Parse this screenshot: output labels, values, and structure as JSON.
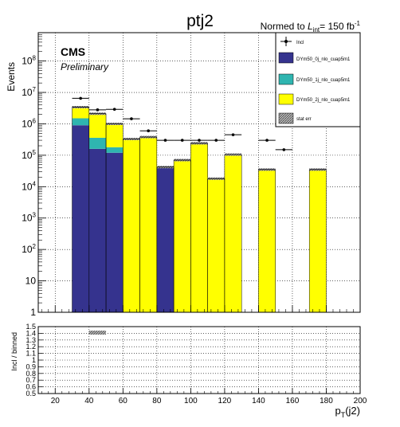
{
  "chart_data": {
    "type": "bar",
    "title": "ptj2",
    "normalization_label": "Normed to",
    "lumi_symbol": "L",
    "lumi_subscript": "int",
    "lumi_value": "= 150 fb",
    "lumi_superscript": "-1",
    "experiment_label": "CMS",
    "status_label": "Preliminary",
    "ylabel": "Events",
    "xlabel_main": "p",
    "xlabel_sub": "T",
    "xlabel_arg": "(j2)",
    "ratio_ylabel": "Incl / binned",
    "xlim": [
      10,
      200
    ],
    "ylim": [
      1,
      800000000
    ],
    "log_y": true,
    "grid": true,
    "legend_position": "top-right",
    "bin_edges": [
      0,
      30,
      40,
      50,
      60,
      70,
      80,
      90,
      100,
      110,
      120,
      130,
      140,
      150,
      160,
      170,
      180,
      190,
      200
    ],
    "x_ticks": [
      20,
      40,
      60,
      80,
      100,
      120,
      140,
      160,
      180,
      200
    ],
    "y_ticks": [
      {
        "value": 1,
        "label": "1"
      },
      {
        "value": 10,
        "label": "10"
      },
      {
        "value": 100,
        "base": "10",
        "exp": "2"
      },
      {
        "value": 1000,
        "base": "10",
        "exp": "3"
      },
      {
        "value": 10000,
        "base": "10",
        "exp": "4"
      },
      {
        "value": 100000,
        "base": "10",
        "exp": "5"
      },
      {
        "value": 1000000,
        "base": "10",
        "exp": "6"
      },
      {
        "value": 10000000,
        "base": "10",
        "exp": "7"
      },
      {
        "value": 100000000,
        "base": "10",
        "exp": "8"
      }
    ],
    "stack": [
      {
        "name": "DYm50_0j_nlo_cuap5m1",
        "color": "#35338e",
        "values": [
          0,
          900000,
          160000,
          120000,
          0,
          0,
          42000,
          0,
          0,
          0,
          0,
          0,
          0,
          0,
          0,
          0,
          0,
          0
        ]
      },
      {
        "name": "DYm50_1j_nlo_cuap5m1",
        "color": "#2fb5b0",
        "values": [
          0,
          600000,
          200000,
          60000,
          0,
          0,
          0,
          0,
          0,
          0,
          0,
          0,
          0,
          0,
          0,
          0,
          0,
          0
        ]
      },
      {
        "name": "DYm50_2j_nlo_cuap5m1",
        "color": "#ffff00",
        "values": [
          0,
          1900000,
          1740000,
          820000,
          330000,
          380000,
          0,
          70000,
          240000,
          18000,
          105000,
          0,
          35000,
          0,
          0,
          35000,
          0,
          0
        ]
      }
    ],
    "incl": {
      "name": "Incl",
      "x": [
        35,
        45,
        55,
        65,
        75,
        85,
        95,
        105,
        115,
        125,
        145,
        155
      ],
      "y": [
        6500000,
        2800000,
        2900000,
        1450000,
        600000,
        300000,
        300000,
        300000,
        300000,
        450000,
        300000,
        150000
      ],
      "xerr": 5
    },
    "stat_err_label": "stat err",
    "ratio": {
      "ylim": [
        0.5,
        1.5
      ],
      "y_ticks": [
        0.5,
        0.6,
        0.7,
        0.8,
        0.9,
        1,
        1.1,
        1.2,
        1.3,
        1.4,
        1.5
      ],
      "y_tick_labels": [
        "0.5",
        "0.6",
        "0.7",
        "0.8",
        "0.9",
        "1",
        "1.1",
        "1.2",
        "1.3",
        "1.4",
        "1.5"
      ],
      "band_x": [
        40,
        50
      ],
      "band_y": [
        1.38,
        1.44
      ]
    }
  }
}
